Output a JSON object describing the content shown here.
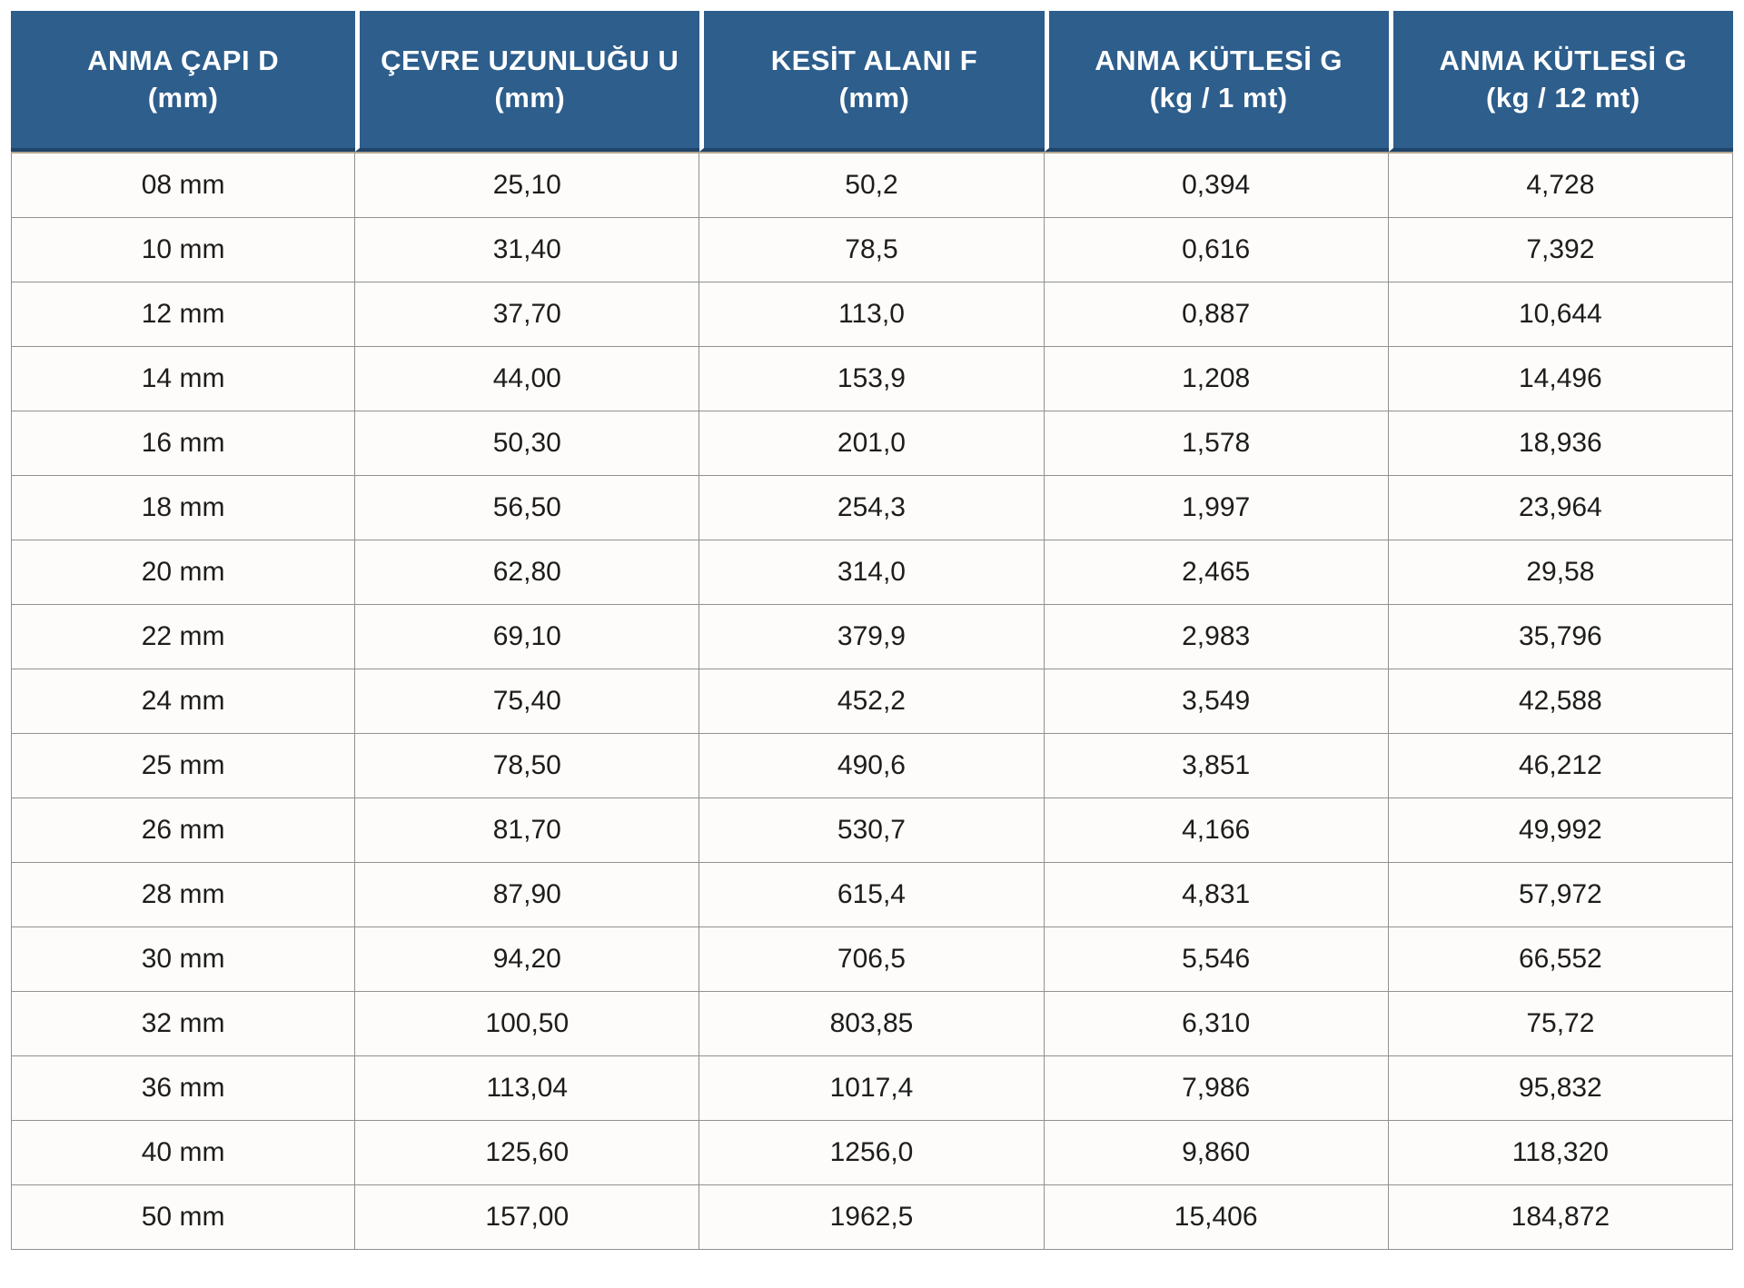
{
  "table": {
    "columns": [
      {
        "title": "ANMA ÇAPI D",
        "unit": "(mm)"
      },
      {
        "title": "ÇEVRE UZUNLUĞU U",
        "unit": "(mm)"
      },
      {
        "title": "KESİT ALANI F",
        "unit": "(mm)"
      },
      {
        "title": "ANMA KÜTLESİ G",
        "unit": "(kg / 1 mt)"
      },
      {
        "title": "ANMA KÜTLESİ G",
        "unit": "(kg / 12 mt)"
      }
    ],
    "rows": [
      [
        "08 mm",
        "25,10",
        "50,2",
        "0,394",
        "4,728"
      ],
      [
        "10 mm",
        "31,40",
        "78,5",
        "0,616",
        "7,392"
      ],
      [
        "12 mm",
        "37,70",
        "113,0",
        "0,887",
        "10,644"
      ],
      [
        "14 mm",
        "44,00",
        "153,9",
        "1,208",
        "14,496"
      ],
      [
        "16 mm",
        "50,30",
        "201,0",
        "1,578",
        "18,936"
      ],
      [
        "18 mm",
        "56,50",
        "254,3",
        "1,997",
        "23,964"
      ],
      [
        "20 mm",
        "62,80",
        "314,0",
        "2,465",
        "29,58"
      ],
      [
        "22 mm",
        "69,10",
        "379,9",
        "2,983",
        "35,796"
      ],
      [
        "24 mm",
        "75,40",
        "452,2",
        "3,549",
        "42,588"
      ],
      [
        "25 mm",
        "78,50",
        "490,6",
        "3,851",
        "46,212"
      ],
      [
        "26 mm",
        "81,70",
        "530,7",
        "4,166",
        "49,992"
      ],
      [
        "28 mm",
        "87,90",
        "615,4",
        "4,831",
        "57,972"
      ],
      [
        "30 mm",
        "94,20",
        "706,5",
        "5,546",
        "66,552"
      ],
      [
        "32 mm",
        "100,50",
        "803,85",
        "6,310",
        "75,72"
      ],
      [
        "36 mm",
        "113,04",
        "1017,4",
        "7,986",
        "95,832"
      ],
      [
        "40 mm",
        "125,60",
        "1256,0",
        "9,860",
        "118,320"
      ],
      [
        "50 mm",
        "157,00",
        "1962,5",
        "15,406",
        "184,872"
      ]
    ],
    "colors": {
      "header_bg": "#2d5e8c",
      "header_text": "#ffffff",
      "header_bottom_border": "#20456b",
      "header_accent_line": "#b5a78e",
      "grid_line": "#919191",
      "body_bg": "#fdfcfa",
      "body_text": "#1d1d1d"
    }
  }
}
